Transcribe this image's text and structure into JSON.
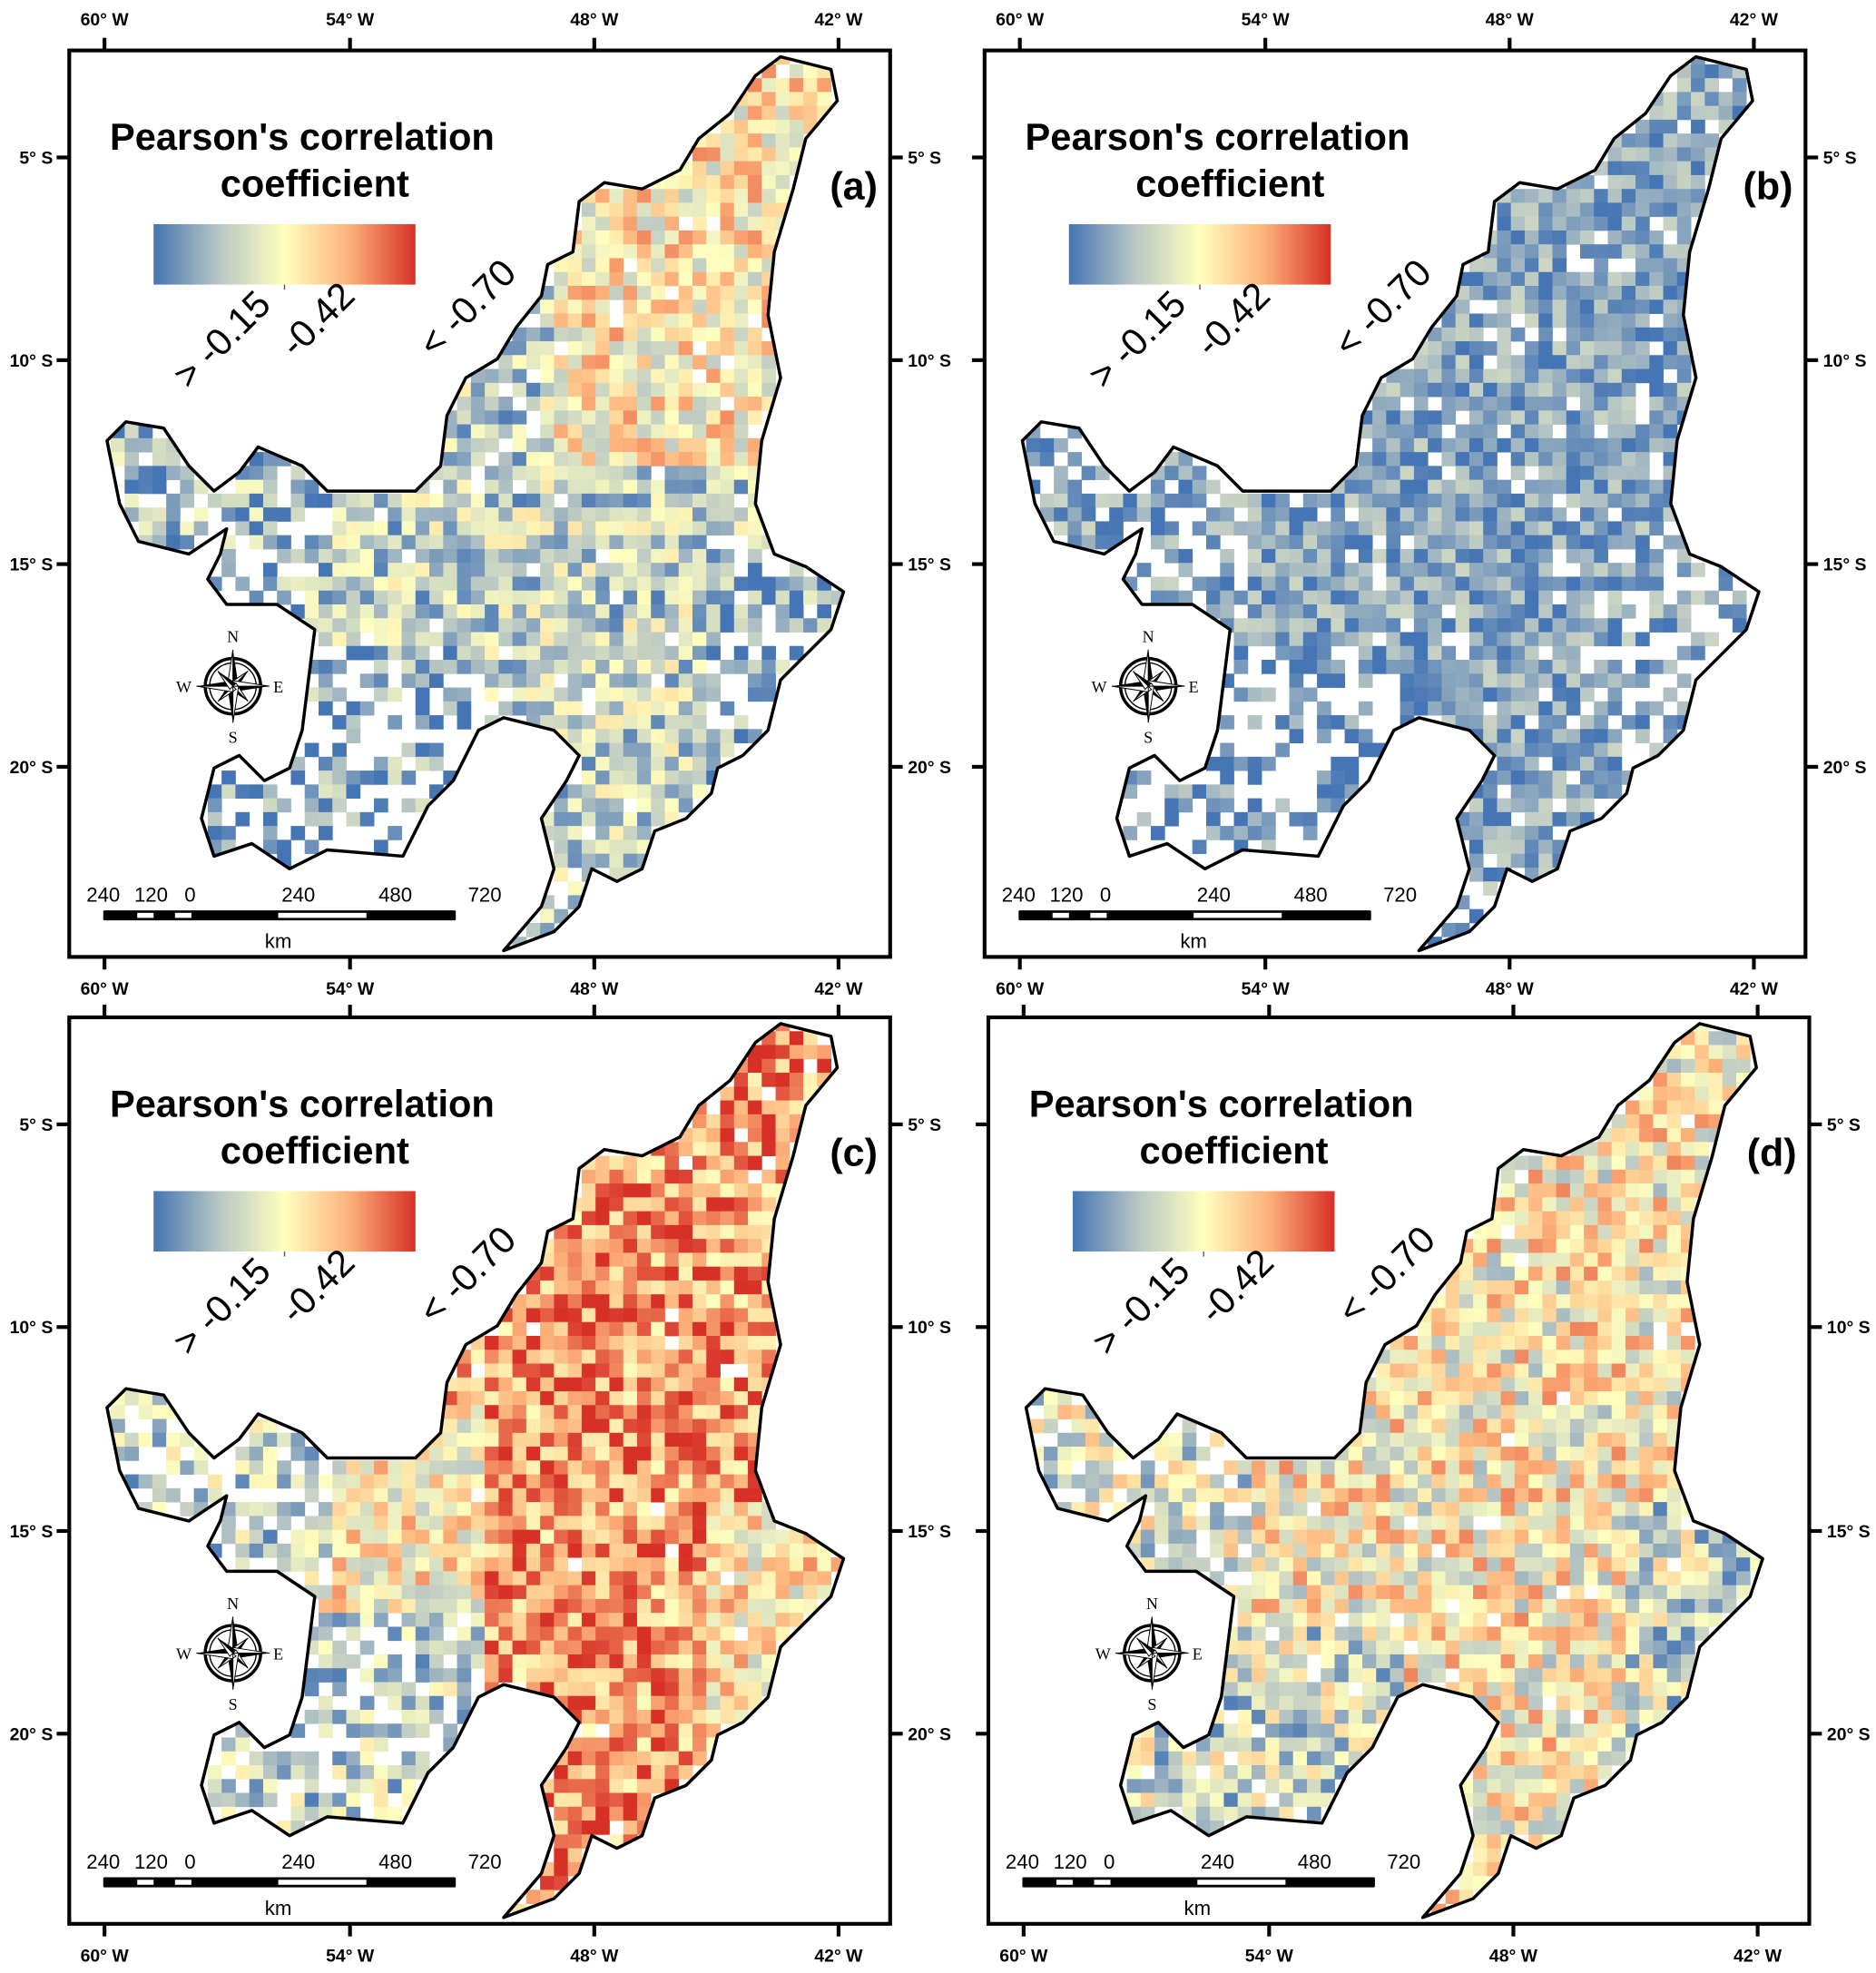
{
  "figure": {
    "legend": {
      "title_line1": "Pearson's correlation",
      "title_line2": "coefficient",
      "labels": [
        "> -0.15",
        "-0.42",
        "< -0.70"
      ],
      "colors": [
        "#4575b4",
        "#b9c7c4",
        "#ffffbf",
        "#fdb079",
        "#d73027"
      ]
    },
    "lon_labels": [
      "60° W",
      "54° W",
      "48° W",
      "42° W"
    ],
    "lat_labels": [
      "5° S",
      "10° S",
      "15° S",
      "20° S"
    ],
    "scale_bar": {
      "labels": [
        "240",
        "120",
        "0",
        "240",
        "480",
        "720"
      ],
      "unit": "km"
    },
    "compass": {
      "n": "N",
      "s": "S",
      "e": "E",
      "w": "W"
    },
    "panels": [
      {
        "letter": "(a)"
      },
      {
        "letter": "(b)"
      },
      {
        "letter": "(c)"
      },
      {
        "letter": "(d)"
      }
    ]
  }
}
